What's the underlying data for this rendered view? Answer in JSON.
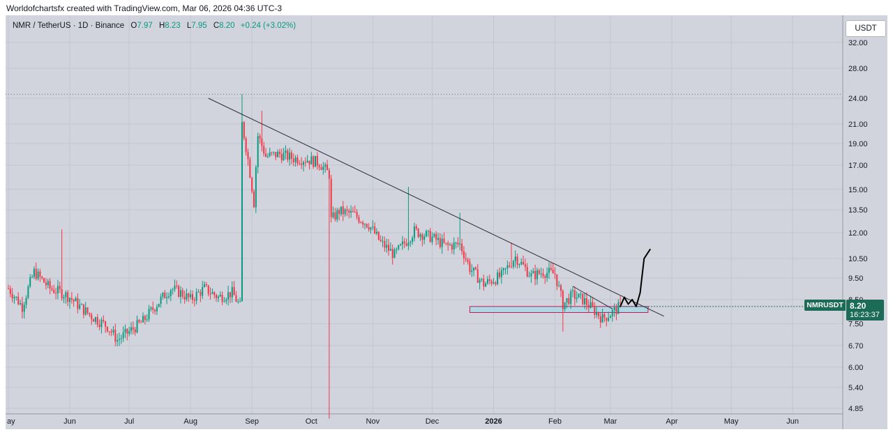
{
  "header": {
    "caption": "Worldofchartsfx created with TradingView.com, Mar 06, 2026 04:36 UTC-3"
  },
  "legend": {
    "symbol": "NMR / TetherUS · 1D · Binance",
    "o_label": "O",
    "o_value": "7.97",
    "h_label": "H",
    "h_value": "8.23",
    "l_label": "L",
    "l_value": "7.95",
    "c_label": "C",
    "c_value": "8.20",
    "change": "+0.24 (+3.02%)"
  },
  "currency_button": "USDT",
  "price_tag": {
    "symbol": "NMRUSDT",
    "price": "8.20",
    "countdown": "16:23:37"
  },
  "colors": {
    "up": "#089981",
    "down": "#f23645",
    "background": "#d1d4dc",
    "tag": "#1b6b56"
  },
  "chart_data": {
    "type": "candlestick",
    "scale": "log",
    "y_ticks": [
      "32.00",
      "28.00",
      "24.00",
      "21.00",
      "19.00",
      "17.00",
      "15.00",
      "13.50",
      "12.00",
      "10.50",
      "9.50",
      "8.50",
      "7.50",
      "6.70",
      "6.00",
      "5.40",
      "4.85"
    ],
    "x_ticks": [
      "ay",
      "Jun",
      "Jul",
      "Aug",
      "Sep",
      "Oct",
      "Nov",
      "Dec",
      "2026",
      "Feb",
      "Mar",
      "Apr",
      "May",
      "Jun"
    ],
    "ylim": [
      4.6,
      34
    ],
    "anchors": [
      [
        "2025-05-01",
        9.0
      ],
      [
        "2025-05-08",
        8.2
      ],
      [
        "2025-05-14",
        9.8
      ],
      [
        "2025-05-22",
        9.0
      ],
      [
        "2025-05-28",
        8.8
      ],
      [
        "2025-06-01",
        8.6
      ],
      [
        "2025-06-06",
        8.2
      ],
      [
        "2025-06-12",
        7.8
      ],
      [
        "2025-06-20",
        7.4
      ],
      [
        "2025-06-25",
        6.9
      ],
      [
        "2025-07-01",
        7.2
      ],
      [
        "2025-07-08",
        7.6
      ],
      [
        "2025-07-15",
        8.3
      ],
      [
        "2025-07-22",
        9.0
      ],
      [
        "2025-07-27",
        8.8
      ],
      [
        "2025-08-01",
        8.5
      ],
      [
        "2025-08-08",
        9.0
      ],
      [
        "2025-08-15",
        8.6
      ],
      [
        "2025-08-22",
        8.8
      ],
      [
        "2025-08-26",
        8.2
      ],
      [
        "2025-08-27",
        21.0
      ],
      [
        "2025-08-30",
        17.5
      ],
      [
        "2025-09-02",
        14.0
      ],
      [
        "2025-09-04",
        19.8
      ],
      [
        "2025-09-08",
        17.8
      ],
      [
        "2025-09-15",
        18.0
      ],
      [
        "2025-09-22",
        17.6
      ],
      [
        "2025-09-29",
        17.5
      ],
      [
        "2025-10-05",
        17.2
      ],
      [
        "2025-10-10",
        16.2
      ],
      [
        "2025-10-11",
        12.8
      ],
      [
        "2025-10-15",
        13.4
      ],
      [
        "2025-10-22",
        13.2
      ],
      [
        "2025-10-30",
        12.5
      ],
      [
        "2025-11-05",
        11.4
      ],
      [
        "2025-11-12",
        10.7
      ],
      [
        "2025-11-18",
        11.5
      ],
      [
        "2025-11-22",
        12.1
      ],
      [
        "2025-12-01",
        11.7
      ],
      [
        "2025-12-08",
        11.2
      ],
      [
        "2025-12-15",
        11.3
      ],
      [
        "2025-12-20",
        10.0
      ],
      [
        "2025-12-27",
        9.2
      ],
      [
        "2026-01-05",
        9.6
      ],
      [
        "2026-01-12",
        10.6
      ],
      [
        "2026-01-20",
        9.6
      ],
      [
        "2026-01-26",
        9.8
      ],
      [
        "2026-02-01",
        9.7
      ],
      [
        "2026-02-05",
        8.3
      ],
      [
        "2026-02-10",
        8.7
      ],
      [
        "2026-02-15",
        8.5
      ],
      [
        "2026-02-20",
        8.1
      ],
      [
        "2026-02-25",
        7.7
      ],
      [
        "2026-03-01",
        7.9
      ],
      [
        "2026-03-06",
        8.2
      ]
    ],
    "spikes": [
      {
        "date": "2025-05-28",
        "high": 12.2
      },
      {
        "date": "2025-08-27",
        "high": 24.5
      },
      {
        "date": "2025-09-06",
        "high": 22.5
      },
      {
        "date": "2025-10-10",
        "low": 4.6
      },
      {
        "date": "2025-11-19",
        "high": 15.2
      },
      {
        "date": "2025-12-15",
        "high": 13.3
      },
      {
        "date": "2026-01-10",
        "high": 11.4
      },
      {
        "date": "2026-02-05",
        "low": 7.2
      }
    ],
    "dotted_level": 24.5,
    "trendline": {
      "start": [
        "2025-08-10",
        24.0
      ],
      "end": [
        "2026-03-28",
        7.8
      ]
    },
    "short_trendline": {
      "start": [
        "2026-02-10",
        9.1
      ],
      "end": [
        "2026-03-02",
        8.1
      ]
    },
    "zone": {
      "start": "2025-12-20",
      "end": "2026-03-20",
      "low": 7.95,
      "high": 8.2
    },
    "projection": [
      [
        "2026-03-06",
        8.2
      ],
      [
        "2026-03-08",
        8.6
      ],
      [
        "2026-03-10",
        8.3
      ],
      [
        "2026-03-12",
        8.5
      ],
      [
        "2026-03-14",
        8.2
      ],
      [
        "2026-03-16",
        8.8
      ],
      [
        "2026-03-18",
        10.5
      ],
      [
        "2026-03-21",
        11.0
      ]
    ],
    "last_price": 8.2
  }
}
